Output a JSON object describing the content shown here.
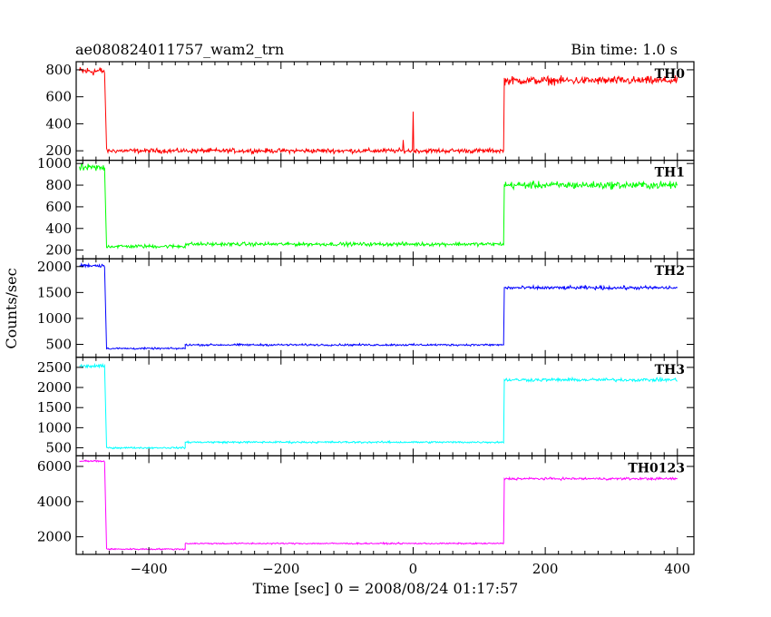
{
  "chart_data": {
    "type": "line",
    "title": "ae080824011757_wam2_trn",
    "subtitle": "Bin time: 1.0 s",
    "xlabel": "Time [sec] 0 = 2008/08/24 01:17:57",
    "ylabel": "Counts/sec",
    "xlim": [
      -510,
      425
    ],
    "x_ticks": [
      -400,
      -200,
      0,
      200,
      400
    ],
    "grid": false,
    "panels": [
      {
        "name": "TH0",
        "color": "#ff0000",
        "ylim": [
          130,
          860
        ],
        "y_ticks": [
          200,
          400,
          600,
          800
        ],
        "segments": [
          {
            "x": [
              -505,
              -467
            ],
            "y": 790,
            "noise": 50
          },
          {
            "x": [
              -464,
              137
            ],
            "y": 200,
            "noise": 25
          },
          {
            "x": [
              138,
              400
            ],
            "y": 720,
            "noise": 45
          }
        ],
        "spikes": [
          {
            "x": 0,
            "y": 490
          },
          {
            "x": -15,
            "y": 280
          }
        ]
      },
      {
        "name": "TH1",
        "color": "#00ff00",
        "ylim": [
          120,
          1030
        ],
        "y_ticks": [
          200,
          400,
          600,
          800,
          1000
        ],
        "segments": [
          {
            "x": [
              -505,
              -467
            ],
            "y": 960,
            "noise": 50
          },
          {
            "x": [
              -464,
              -345
            ],
            "y": 235,
            "noise": 25
          },
          {
            "x": [
              -345,
              137
            ],
            "y": 255,
            "noise": 25
          },
          {
            "x": [
              138,
              400
            ],
            "y": 800,
            "noise": 50
          }
        ],
        "spikes": []
      },
      {
        "name": "TH2",
        "color": "#0000ff",
        "ylim": [
          250,
          2150
        ],
        "y_ticks": [
          500,
          1000,
          1500,
          2000
        ],
        "segments": [
          {
            "x": [
              -505,
              -467
            ],
            "y": 2020,
            "noise": 50
          },
          {
            "x": [
              -464,
              -345
            ],
            "y": 420,
            "noise": 25
          },
          {
            "x": [
              -345,
              137
            ],
            "y": 490,
            "noise": 28
          },
          {
            "x": [
              138,
              400
            ],
            "y": 1590,
            "noise": 50
          }
        ],
        "spikes": []
      },
      {
        "name": "TH3",
        "color": "#00ffff",
        "ylim": [
          300,
          2750
        ],
        "y_ticks": [
          500,
          1000,
          1500,
          2000,
          2500
        ],
        "segments": [
          {
            "x": [
              -505,
              -467
            ],
            "y": 2530,
            "noise": 60
          },
          {
            "x": [
              -464,
              -345
            ],
            "y": 500,
            "noise": 30
          },
          {
            "x": [
              -345,
              137
            ],
            "y": 640,
            "noise": 35
          },
          {
            "x": [
              138,
              400
            ],
            "y": 2190,
            "noise": 60
          }
        ],
        "spikes": []
      },
      {
        "name": "TH0123",
        "color": "#ff00ff",
        "ylim": [
          1000,
          6600
        ],
        "y_ticks": [
          2000,
          4000,
          6000
        ],
        "segments": [
          {
            "x": [
              -505,
              -467
            ],
            "y": 6300,
            "noise": 90
          },
          {
            "x": [
              -464,
              -345
            ],
            "y": 1300,
            "noise": 60
          },
          {
            "x": [
              -345,
              137
            ],
            "y": 1620,
            "noise": 60
          },
          {
            "x": [
              138,
              400
            ],
            "y": 5300,
            "noise": 100
          }
        ],
        "spikes": []
      }
    ]
  }
}
